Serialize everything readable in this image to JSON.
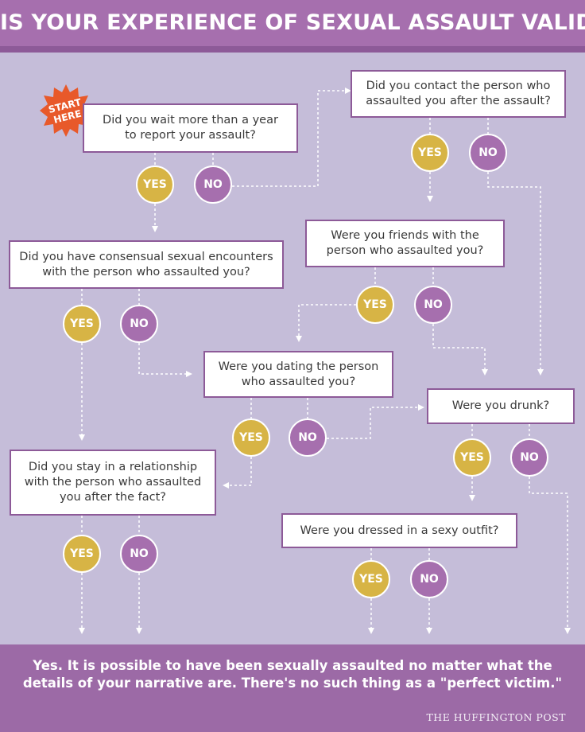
{
  "title": "IS YOUR EXPERIENCE OF SEXUAL ASSAULT VALID?",
  "start_badge": "START\nHERE",
  "questions": {
    "q_year": "Did you wait more than a year\nto report your assault?",
    "q_contact": "Did you contact the person who\nassaulted you after the assault?",
    "q_friends": "Were you friends with the\nperson who assaulted you?",
    "q_consensual": "Did you have consensual sexual encounters\nwith the person who assaulted you?",
    "q_dating": "Were you dating the person\nwho assaulted you?",
    "q_drunk": "Were you drunk?",
    "q_relationship": "Did you stay in a relationship\nwith the person who assaulted\nyou after the fact?",
    "q_outfit": "Were you dressed in a sexy outfit?"
  },
  "answers": {
    "yes": "YES",
    "no": "NO"
  },
  "footer": {
    "message": "Yes. It is possible to have been sexually assaulted no matter what the details of your narrative are. There's no such thing as a \"perfect victim.\"",
    "brand": "THE HUFFINGTON POST"
  },
  "colors": {
    "background": "#c5bdd9",
    "header": "#a66fae",
    "yes": "#d7b445",
    "no": "#a66fae",
    "start_badge": "#e8592a",
    "footer": "#9c6aa6"
  }
}
